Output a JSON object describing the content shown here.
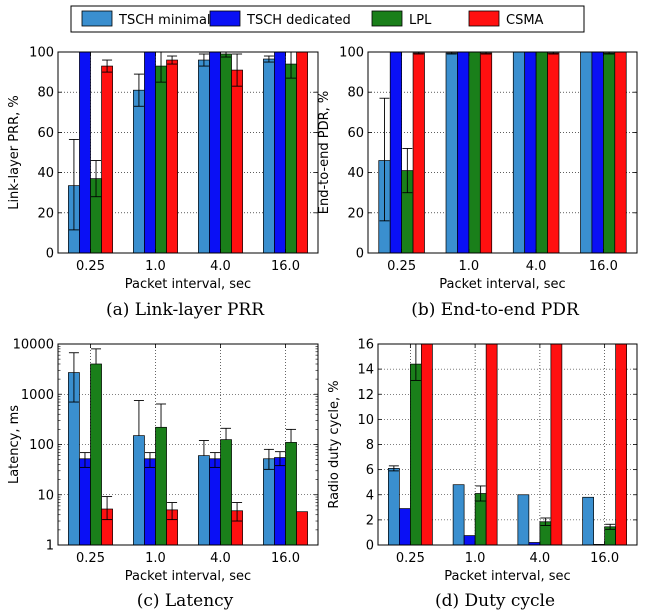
{
  "legend": [
    {
      "name": "TSCH minimal",
      "color": "#3a8fcf"
    },
    {
      "name": "TSCH dedicated",
      "color": "#0a10f5"
    },
    {
      "name": "LPL",
      "color": "#1a7f1a"
    },
    {
      "name": "CSMA",
      "color": "#ff1010"
    }
  ],
  "captions": {
    "a": "(a) Link-layer PRR",
    "b": "(b) End-to-end PDR",
    "c": "(c) Latency",
    "d": "(d) Duty cycle"
  },
  "chart_data": [
    {
      "id": "a",
      "type": "bar",
      "categories": [
        "0.25",
        "1.0",
        "4.0",
        "16.0"
      ],
      "xlabel": "Packet interval, sec",
      "ylabel": "Link-layer PRR, %",
      "ylim": [
        0,
        100
      ],
      "yticks": [
        0,
        20,
        40,
        60,
        80,
        100
      ],
      "yscale": "linear",
      "grid": true,
      "series": [
        {
          "name": "TSCH minimal",
          "values": [
            33.5,
            81,
            96,
            96.5
          ],
          "err": [
            [
              22,
              23
            ],
            [
              8,
              8
            ],
            [
              3,
              3
            ],
            [
              1.5,
              1.5
            ]
          ]
        },
        {
          "name": "TSCH dedicated",
          "values": [
            100,
            100,
            100,
            100
          ],
          "err": [
            [
              0,
              0
            ],
            [
              0,
              0
            ],
            [
              0,
              0
            ],
            [
              0,
              0
            ]
          ]
        },
        {
          "name": "LPL",
          "values": [
            37,
            93,
            99,
            94
          ],
          "err": [
            [
              9,
              9
            ],
            [
              8,
              7
            ],
            [
              1.5,
              1
            ],
            [
              7,
              6
            ]
          ]
        },
        {
          "name": "CSMA",
          "values": [
            93,
            96,
            91,
            100
          ],
          "err": [
            [
              3,
              3
            ],
            [
              2,
              2
            ],
            [
              8,
              8
            ],
            [
              0,
              0
            ]
          ]
        }
      ]
    },
    {
      "id": "b",
      "type": "bar",
      "categories": [
        "0.25",
        "1.0",
        "4.0",
        "16.0"
      ],
      "xlabel": "Packet interval, sec",
      "ylabel": "End-to-end PDR, %",
      "ylim": [
        0,
        100
      ],
      "yticks": [
        0,
        20,
        40,
        60,
        80,
        100
      ],
      "yscale": "linear",
      "grid": true,
      "series": [
        {
          "name": "TSCH minimal",
          "values": [
            46,
            99.5,
            100,
            100
          ],
          "err": [
            [
              30,
              31
            ],
            [
              0.5,
              0.5
            ],
            [
              0,
              0
            ],
            [
              0,
              0
            ]
          ]
        },
        {
          "name": "TSCH dedicated",
          "values": [
            100,
            100,
            100,
            100
          ],
          "err": [
            [
              0,
              0
            ],
            [
              0,
              0
            ],
            [
              0,
              0
            ],
            [
              0,
              0
            ]
          ]
        },
        {
          "name": "LPL",
          "values": [
            41,
            100,
            100,
            99.5
          ],
          "err": [
            [
              11,
              11
            ],
            [
              0,
              0
            ],
            [
              0,
              0
            ],
            [
              0.5,
              0.5
            ]
          ]
        },
        {
          "name": "CSMA",
          "values": [
            99.5,
            99.5,
            99.5,
            100
          ],
          "err": [
            [
              0.5,
              0.5
            ],
            [
              0.5,
              0.5
            ],
            [
              0.5,
              0.5
            ],
            [
              0,
              0
            ]
          ]
        }
      ]
    },
    {
      "id": "c",
      "type": "bar",
      "categories": [
        "0.25",
        "1.0",
        "4.0",
        "16.0"
      ],
      "xlabel": "Packet interval, sec",
      "ylabel": "Latency, ms",
      "ylim": [
        1,
        10000
      ],
      "yticks": [
        1,
        10,
        100,
        1000,
        10000
      ],
      "yscale": "log",
      "grid": true,
      "series": [
        {
          "name": "TSCH minimal",
          "values": [
            2700,
            150,
            60,
            52
          ],
          "err": [
            [
              2000,
              4000
            ],
            [
              0,
              600
            ],
            [
              0,
              60
            ],
            [
              20,
              28
            ]
          ]
        },
        {
          "name": "TSCH dedicated",
          "values": [
            52,
            52,
            52,
            55
          ],
          "err": [
            [
              17,
              17
            ],
            [
              17,
              17
            ],
            [
              17,
              17
            ],
            [
              17,
              17
            ]
          ]
        },
        {
          "name": "LPL",
          "values": [
            4000,
            220,
            125,
            110
          ],
          "err": [
            [
              0,
              4000
            ],
            [
              0,
              420
            ],
            [
              0,
              85
            ],
            [
              0,
              90
            ]
          ]
        },
        {
          "name": "CSMA",
          "values": [
            5.2,
            5,
            4.8,
            4.6
          ],
          "err": [
            [
              2,
              4
            ],
            [
              1.8,
              2
            ],
            [
              1.8,
              2.2
            ],
            [
              0,
              0
            ]
          ]
        }
      ]
    },
    {
      "id": "d",
      "type": "bar",
      "categories": [
        "0.25",
        "1.0",
        "4.0",
        "16.0"
      ],
      "xlabel": "Packet interval, sec",
      "ylabel": "Radio duty cycle, %",
      "ylim": [
        0,
        16
      ],
      "yticks": [
        0,
        2,
        4,
        6,
        8,
        10,
        12,
        14,
        16
      ],
      "yscale": "linear",
      "grid": true,
      "series": [
        {
          "name": "TSCH minimal",
          "values": [
            6.1,
            4.8,
            4.0,
            3.8
          ],
          "err": [
            [
              0.2,
              0.2
            ],
            [
              0,
              0
            ],
            [
              0,
              0
            ],
            [
              0,
              0
            ]
          ]
        },
        {
          "name": "TSCH dedicated",
          "values": [
            2.9,
            0.75,
            0.2,
            0.05
          ],
          "err": [
            [
              0,
              0
            ],
            [
              0,
              0
            ],
            [
              0,
              0
            ],
            [
              0,
              0
            ]
          ]
        },
        {
          "name": "LPL",
          "values": [
            14.4,
            4.1,
            1.85,
            1.45
          ],
          "err": [
            [
              1.3,
              1.6
            ],
            [
              0.6,
              0.6
            ],
            [
              0.3,
              0.3
            ],
            [
              0.2,
              0.2
            ]
          ]
        },
        {
          "name": "CSMA",
          "values": [
            16,
            16,
            16,
            16
          ],
          "err": [
            [
              0,
              0
            ],
            [
              0,
              0
            ],
            [
              0,
              0
            ],
            [
              0,
              0
            ]
          ]
        }
      ]
    }
  ]
}
